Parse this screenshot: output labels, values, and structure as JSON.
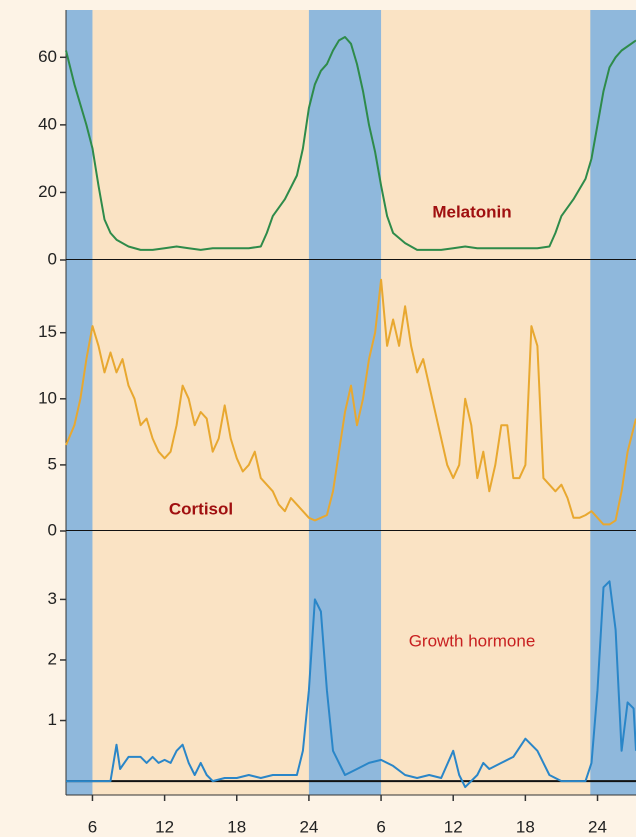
{
  "chart_data": [
    {
      "type": "line",
      "title": "Melatonin",
      "color": "#2e8b4a",
      "xlim": [
        3.8,
        51.2
      ],
      "ylim": [
        0,
        74
      ],
      "yticks": [
        0,
        20,
        40,
        60
      ],
      "bands": [
        [
          0,
          6
        ],
        [
          24,
          30
        ],
        [
          47.4,
          54
        ]
      ],
      "x": [
        3.8,
        4.5,
        5.5,
        6,
        6.5,
        7,
        7.5,
        8,
        9,
        10,
        11,
        12,
        13,
        14,
        15,
        16,
        17,
        18,
        19,
        20,
        20.5,
        21,
        22,
        23,
        23.5,
        24,
        24.5,
        25,
        25.5,
        26,
        26.5,
        27,
        27.5,
        28,
        28.5,
        29,
        29.5,
        30,
        30.5,
        31,
        32,
        33,
        34,
        35,
        36,
        37,
        38,
        39,
        40,
        41,
        42,
        43,
        44,
        44.5,
        45,
        46,
        47,
        47.5,
        48,
        48.5,
        49,
        49.5,
        50,
        51.2
      ],
      "values": [
        62,
        52,
        40,
        33,
        22,
        12,
        8,
        6,
        4,
        3,
        3,
        3.5,
        4,
        3.5,
        3,
        3.5,
        3.5,
        3.5,
        3.5,
        4,
        8,
        13,
        18,
        25,
        33,
        45,
        52,
        56,
        58,
        62,
        65,
        66,
        64,
        58,
        50,
        40,
        32,
        22,
        13,
        8,
        5,
        3,
        3,
        3,
        3.5,
        4,
        3.5,
        3.5,
        3.5,
        3.5,
        3.5,
        3.5,
        4,
        8,
        13,
        18,
        24,
        30,
        40,
        50,
        57,
        60,
        62,
        65
      ]
    },
    {
      "type": "line",
      "title": "Cortisol",
      "color": "#e8a830",
      "xlim": [
        3.8,
        51.2
      ],
      "ylim": [
        0,
        20.5
      ],
      "yticks": [
        0,
        5,
        10,
        15
      ],
      "bands": [
        [
          0,
          6
        ],
        [
          24,
          30
        ],
        [
          47.4,
          54
        ]
      ],
      "x": [
        3.8,
        4.5,
        5,
        5.5,
        6,
        6.5,
        7,
        7.5,
        8,
        8.5,
        9,
        9.5,
        10,
        10.5,
        11,
        11.5,
        12,
        12.5,
        13,
        13.5,
        14,
        14.5,
        15,
        15.5,
        16,
        16.5,
        17,
        17.5,
        18,
        18.5,
        19,
        19.5,
        20,
        20.5,
        21,
        21.5,
        22,
        22.5,
        23,
        23.5,
        24,
        24.5,
        25,
        25.5,
        26,
        26.5,
        27,
        27.5,
        28,
        28.5,
        29,
        29.5,
        30,
        30.5,
        31,
        31.5,
        32,
        32.5,
        33,
        33.5,
        34,
        34.5,
        35,
        35.5,
        36,
        36.5,
        37,
        37.5,
        38,
        38.5,
        39,
        39.5,
        40,
        40.5,
        41,
        41.5,
        42,
        42.5,
        43,
        43.5,
        44,
        44.5,
        45,
        45.5,
        46,
        46.5,
        47,
        47.5,
        48,
        48.5,
        49,
        49.5,
        50,
        50.5,
        51.2
      ],
      "values": [
        6.5,
        8,
        10,
        13,
        15.5,
        14,
        12,
        13.5,
        12,
        13,
        11,
        10,
        8,
        8.5,
        7,
        6,
        5.5,
        6,
        8,
        11,
        10,
        8,
        9,
        8.5,
        6,
        7,
        9.5,
        7,
        5.5,
        4.5,
        5,
        6,
        4,
        3.5,
        3,
        2,
        1.5,
        2.5,
        2,
        1.5,
        1,
        0.8,
        1,
        1.2,
        3,
        6,
        9,
        11,
        8,
        10,
        13,
        15,
        19,
        14,
        16,
        14,
        17,
        14,
        12,
        13,
        11,
        9,
        7,
        5,
        4,
        5,
        10,
        8,
        4,
        6,
        3,
        5,
        8,
        8,
        4,
        4,
        5,
        15.5,
        14,
        4,
        3.5,
        3,
        3.5,
        2.5,
        1,
        1,
        1.2,
        1.5,
        1,
        0.5,
        0.5,
        0.8,
        3,
        6,
        8.5
      ]
    },
    {
      "type": "line",
      "title": "Growth hormone",
      "color": "#2a86c8",
      "xlim": [
        3.8,
        51.2
      ],
      "ylim": [
        -0.23,
        4.13
      ],
      "yticks": [
        1,
        2,
        3
      ],
      "bands": [
        [
          0,
          6
        ],
        [
          24,
          30
        ],
        [
          47.4,
          54
        ]
      ],
      "xticks": [
        6,
        12,
        18,
        24,
        {
          "value": 30,
          "label": "6"
        },
        {
          "value": 36,
          "label": "12"
        },
        {
          "value": 42,
          "label": "18"
        },
        {
          "value": 48,
          "label": "24"
        }
      ],
      "x": [
        3.8,
        5,
        6,
        7,
        7.5,
        8,
        8.3,
        9,
        10,
        10.5,
        11,
        11.5,
        12,
        12.5,
        13,
        13.5,
        14,
        14.5,
        15,
        15.5,
        16,
        17,
        18,
        19,
        20,
        21,
        22,
        23,
        23.5,
        24,
        24.5,
        25,
        25.5,
        26,
        26.5,
        27,
        28,
        29,
        30,
        31,
        32,
        33,
        34,
        35,
        36,
        36.5,
        37,
        38,
        38.5,
        39,
        40,
        41,
        42,
        43,
        43.5,
        44,
        45,
        46,
        47,
        47.5,
        48,
        48.5,
        49,
        49.5,
        50,
        50.5,
        51,
        51.2
      ],
      "values": [
        0,
        0,
        0,
        0,
        0,
        0.6,
        0.2,
        0.4,
        0.4,
        0.3,
        0.4,
        0.3,
        0.35,
        0.3,
        0.5,
        0.6,
        0.3,
        0.1,
        0.3,
        0.1,
        0,
        0.05,
        0.05,
        0.1,
        0.05,
        0.1,
        0.1,
        0.1,
        0.5,
        1.5,
        3,
        2.8,
        1.5,
        0.5,
        0.3,
        0.1,
        0.2,
        0.3,
        0.35,
        0.25,
        0.1,
        0.05,
        0.1,
        0.05,
        0.5,
        0.1,
        -0.1,
        0.1,
        0.3,
        0.2,
        0.3,
        0.4,
        0.7,
        0.5,
        0.3,
        0.1,
        0,
        0,
        0,
        0.3,
        1.5,
        3.2,
        3.3,
        2.5,
        0.5,
        1.3,
        1.2,
        0.5
      ]
    }
  ]
}
